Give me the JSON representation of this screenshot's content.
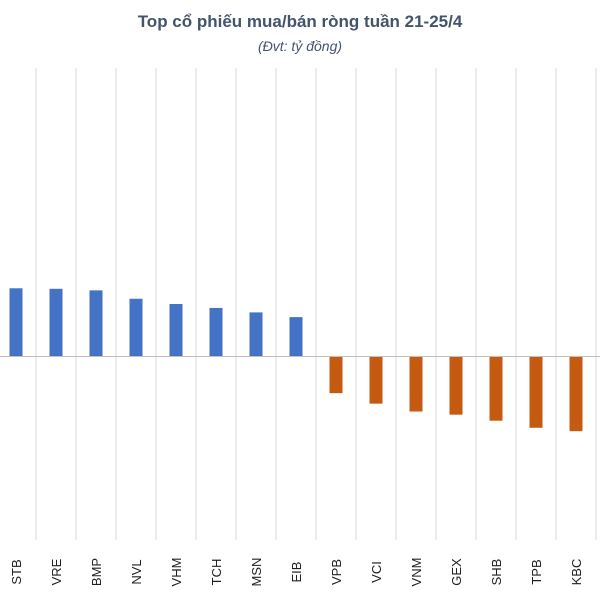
{
  "chart_data": {
    "type": "bar",
    "title": "Top cổ phiếu mua/bán ròng tuần 21-25/4",
    "subtitle": "(Đvt: tỷ đồng)",
    "xlabel": "",
    "ylabel": "",
    "categories": [
      "STB",
      "VRE",
      "BMP",
      "NVL",
      "VHM",
      "TCH",
      "MSN",
      "EIB",
      "VPB",
      "VCI",
      "VNM",
      "GEX",
      "SHB",
      "TPB",
      "KBC"
    ],
    "values": [
      260,
      258,
      252,
      220,
      200,
      185,
      168,
      150,
      -140,
      -180,
      -210,
      -222,
      -245,
      -272,
      -285
    ],
    "ylim": [
      -700,
      1100
    ],
    "grid": "vertical",
    "colors": {
      "positive": "#4472c4",
      "negative": "#c55a11",
      "grid": "#d9d9d9",
      "axis": "#bfbfbf",
      "text": "#1f1f1f",
      "title": "#44546a"
    }
  }
}
